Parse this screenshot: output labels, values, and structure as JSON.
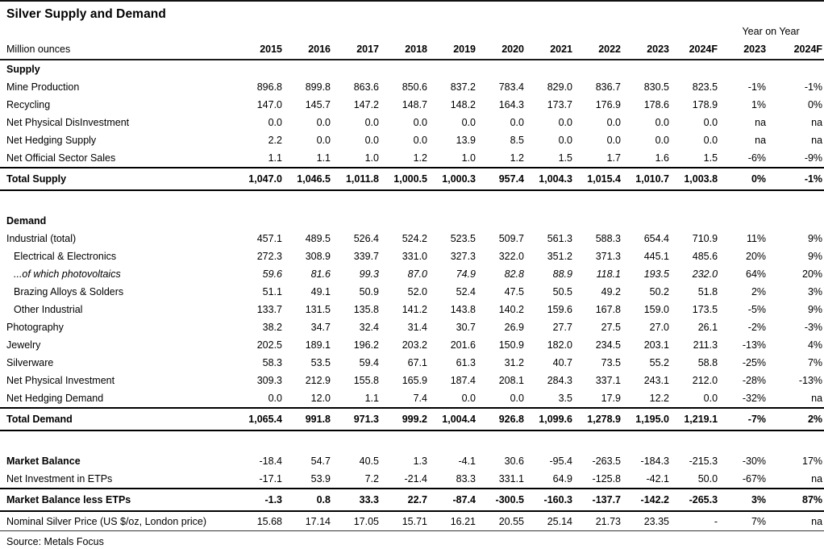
{
  "title": "Silver Supply and Demand",
  "header": {
    "unit_label": "Million ounces",
    "year_on_year_label": "Year on Year",
    "years": [
      "2015",
      "2016",
      "2017",
      "2018",
      "2019",
      "2020",
      "2021",
      "2022",
      "2023",
      "2024F"
    ],
    "yoy_years": [
      "2023",
      "2024F"
    ]
  },
  "table": {
    "rows": [
      {
        "type": "section",
        "label": "Supply"
      },
      {
        "type": "row",
        "label": "Mine Production",
        "values": [
          "896.8",
          "899.8",
          "863.6",
          "850.6",
          "837.2",
          "783.4",
          "829.0",
          "836.7",
          "830.5",
          "823.5"
        ],
        "yoy": [
          "-1%",
          "-1%"
        ]
      },
      {
        "type": "row",
        "label": "Recycling",
        "values": [
          "147.0",
          "145.7",
          "147.2",
          "148.7",
          "148.2",
          "164.3",
          "173.7",
          "176.9",
          "178.6",
          "178.9"
        ],
        "yoy": [
          "1%",
          "0%"
        ]
      },
      {
        "type": "row",
        "label": "Net Physical DisInvestment",
        "values": [
          "0.0",
          "0.0",
          "0.0",
          "0.0",
          "0.0",
          "0.0",
          "0.0",
          "0.0",
          "0.0",
          "0.0"
        ],
        "yoy": [
          "na",
          "na"
        ]
      },
      {
        "type": "row",
        "label": "Net Hedging Supply",
        "values": [
          "2.2",
          "0.0",
          "0.0",
          "0.0",
          "13.9",
          "8.5",
          "0.0",
          "0.0",
          "0.0",
          "0.0"
        ],
        "yoy": [
          "na",
          "na"
        ]
      },
      {
        "type": "row",
        "label": "Net Official Sector Sales",
        "values": [
          "1.1",
          "1.1",
          "1.0",
          "1.2",
          "1.0",
          "1.2",
          "1.5",
          "1.7",
          "1.6",
          "1.5"
        ],
        "yoy": [
          "-6%",
          "-9%"
        ]
      },
      {
        "type": "total",
        "label": "Total Supply",
        "values": [
          "1,047.0",
          "1,046.5",
          "1,011.8",
          "1,000.5",
          "1,000.3",
          "957.4",
          "1,004.3",
          "1,015.4",
          "1,010.7",
          "1,003.8"
        ],
        "yoy": [
          "0%",
          "-1%"
        ]
      },
      {
        "type": "gap"
      },
      {
        "type": "section",
        "label": "Demand"
      },
      {
        "type": "row",
        "label": "Industrial (total)",
        "values": [
          "457.1",
          "489.5",
          "526.4",
          "524.2",
          "523.5",
          "509.7",
          "561.3",
          "588.3",
          "654.4",
          "710.9"
        ],
        "yoy": [
          "11%",
          "9%"
        ]
      },
      {
        "type": "row",
        "indent": true,
        "label": "Electrical & Electronics",
        "values": [
          "272.3",
          "308.9",
          "339.7",
          "331.0",
          "327.3",
          "322.0",
          "351.2",
          "371.3",
          "445.1",
          "485.6"
        ],
        "yoy": [
          "20%",
          "9%"
        ]
      },
      {
        "type": "row",
        "indent": true,
        "italic": true,
        "label": "...of which photovoltaics",
        "values": [
          "59.6",
          "81.6",
          "99.3",
          "87.0",
          "74.9",
          "82.8",
          "88.9",
          "118.1",
          "193.5",
          "232.0"
        ],
        "yoy": [
          "64%",
          "20%"
        ]
      },
      {
        "type": "row",
        "indent": true,
        "label": "Brazing Alloys & Solders",
        "values": [
          "51.1",
          "49.1",
          "50.9",
          "52.0",
          "52.4",
          "47.5",
          "50.5",
          "49.2",
          "50.2",
          "51.8"
        ],
        "yoy": [
          "2%",
          "3%"
        ]
      },
      {
        "type": "row",
        "indent": true,
        "label": "Other Industrial",
        "values": [
          "133.7",
          "131.5",
          "135.8",
          "141.2",
          "143.8",
          "140.2",
          "159.6",
          "167.8",
          "159.0",
          "173.5"
        ],
        "yoy": [
          "-5%",
          "9%"
        ]
      },
      {
        "type": "row",
        "label": "Photography",
        "values": [
          "38.2",
          "34.7",
          "32.4",
          "31.4",
          "30.7",
          "26.9",
          "27.7",
          "27.5",
          "27.0",
          "26.1"
        ],
        "yoy": [
          "-2%",
          "-3%"
        ]
      },
      {
        "type": "row",
        "label": "Jewelry",
        "values": [
          "202.5",
          "189.1",
          "196.2",
          "203.2",
          "201.6",
          "150.9",
          "182.0",
          "234.5",
          "203.1",
          "211.3"
        ],
        "yoy": [
          "-13%",
          "4%"
        ]
      },
      {
        "type": "row",
        "label": "Silverware",
        "values": [
          "58.3",
          "53.5",
          "59.4",
          "67.1",
          "61.3",
          "31.2",
          "40.7",
          "73.5",
          "55.2",
          "58.8"
        ],
        "yoy": [
          "-25%",
          "7%"
        ]
      },
      {
        "type": "row",
        "label": "Net Physical Investment",
        "values": [
          "309.3",
          "212.9",
          "155.8",
          "165.9",
          "187.4",
          "208.1",
          "284.3",
          "337.1",
          "243.1",
          "212.0"
        ],
        "yoy": [
          "-28%",
          "-13%"
        ]
      },
      {
        "type": "row",
        "label": "Net Hedging Demand",
        "values": [
          "0.0",
          "12.0",
          "1.1",
          "7.4",
          "0.0",
          "0.0",
          "3.5",
          "17.9",
          "12.2",
          "0.0"
        ],
        "yoy": [
          "-32%",
          "na"
        ]
      },
      {
        "type": "total",
        "label": "Total Demand",
        "values": [
          "1,065.4",
          "991.8",
          "971.3",
          "999.2",
          "1,004.4",
          "926.8",
          "1,099.6",
          "1,278.9",
          "1,195.0",
          "1,219.1"
        ],
        "yoy": [
          "-7%",
          "2%"
        ]
      },
      {
        "type": "gap"
      },
      {
        "type": "row",
        "bold_label": true,
        "label": "Market Balance",
        "values": [
          "-18.4",
          "54.7",
          "40.5",
          "1.3",
          "-4.1",
          "30.6",
          "-95.4",
          "-263.5",
          "-184.3",
          "-215.3"
        ],
        "yoy": [
          "-30%",
          "17%"
        ]
      },
      {
        "type": "row",
        "label": "Net Investment in ETPs",
        "values": [
          "-17.1",
          "53.9",
          "7.2",
          "-21.4",
          "83.3",
          "331.1",
          "64.9",
          "-125.8",
          "-42.1",
          "50.0"
        ],
        "yoy": [
          "-67%",
          "na"
        ]
      },
      {
        "type": "total",
        "label": "Market Balance less ETPs",
        "values": [
          "-1.3",
          "0.8",
          "33.3",
          "22.7",
          "-87.4",
          "-300.5",
          "-160.3",
          "-137.7",
          "-142.2",
          "-265.3"
        ],
        "yoy": [
          "3%",
          "87%"
        ]
      },
      {
        "type": "price",
        "label": "Nominal Silver Price (US $/oz, London price)",
        "values": [
          "15.68",
          "17.14",
          "17.05",
          "15.71",
          "16.21",
          "20.55",
          "25.14",
          "21.73",
          "23.35",
          "-"
        ],
        "yoy": [
          "7%",
          "na"
        ]
      }
    ]
  },
  "source": "Source: Metals Focus"
}
